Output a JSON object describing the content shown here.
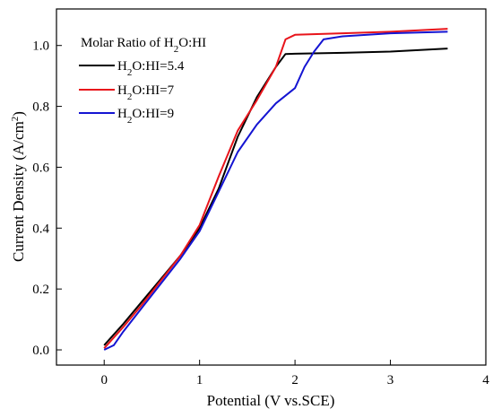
{
  "chart_data": {
    "type": "line",
    "xlabel": "Potential (V vs.SCE)",
    "ylabel_prefix": "Current Density (A/cm",
    "ylabel_sup": "2",
    "ylabel_suffix": ")",
    "xlim": [
      -0.5,
      4.0
    ],
    "ylim": [
      -0.05,
      1.12
    ],
    "xticks": [
      0,
      1,
      2,
      3,
      4
    ],
    "yticks": [
      0.0,
      0.2,
      0.4,
      0.6,
      0.8,
      1.0
    ],
    "xtick_labels": [
      "0",
      "1",
      "2",
      "3",
      "4"
    ],
    "ytick_labels": [
      "0.0",
      "0.2",
      "0.4",
      "0.6",
      "0.8",
      "1.0"
    ],
    "grid": false,
    "legend": {
      "title_prefix": "Molar Ratio of H",
      "title_sub": "2",
      "title_suffix": "O:HI",
      "placement": "top-left"
    },
    "series": [
      {
        "name": "H2O:HI=5.4",
        "label_prefix": "H",
        "label_sub": "2",
        "label_suffix": "O:HI=5.4",
        "color": "#000000",
        "x": [
          0.0,
          0.2,
          0.4,
          0.6,
          0.8,
          1.0,
          1.2,
          1.4,
          1.6,
          1.8,
          1.9,
          2.0,
          2.5,
          3.0,
          3.6
        ],
        "y": [
          0.015,
          0.085,
          0.16,
          0.235,
          0.31,
          0.4,
          0.53,
          0.7,
          0.83,
          0.93,
          0.972,
          0.973,
          0.976,
          0.98,
          0.99
        ]
      },
      {
        "name": "H2O:HI=7",
        "label_prefix": "H",
        "label_sub": "2",
        "label_suffix": "O:HI=7",
        "color": "#e8141b",
        "x": [
          0.0,
          0.2,
          0.4,
          0.6,
          0.8,
          1.0,
          1.2,
          1.4,
          1.6,
          1.8,
          1.9,
          2.0,
          2.5,
          3.0,
          3.6
        ],
        "y": [
          0.005,
          0.075,
          0.15,
          0.23,
          0.31,
          0.41,
          0.57,
          0.72,
          0.82,
          0.93,
          1.02,
          1.035,
          1.04,
          1.045,
          1.055
        ]
      },
      {
        "name": "H2O:HI=9",
        "label_prefix": "H",
        "label_sub": "2",
        "label_suffix": "O:HI=9",
        "color": "#1414d2",
        "x": [
          0.0,
          0.1,
          0.2,
          0.4,
          0.6,
          0.8,
          1.0,
          1.2,
          1.4,
          1.6,
          1.8,
          2.0,
          2.1,
          2.2,
          2.3,
          2.5,
          3.0,
          3.6
        ],
        "y": [
          0.0,
          0.015,
          0.06,
          0.14,
          0.22,
          0.3,
          0.39,
          0.52,
          0.65,
          0.74,
          0.81,
          0.86,
          0.93,
          0.98,
          1.02,
          1.03,
          1.04,
          1.045
        ]
      }
    ]
  }
}
